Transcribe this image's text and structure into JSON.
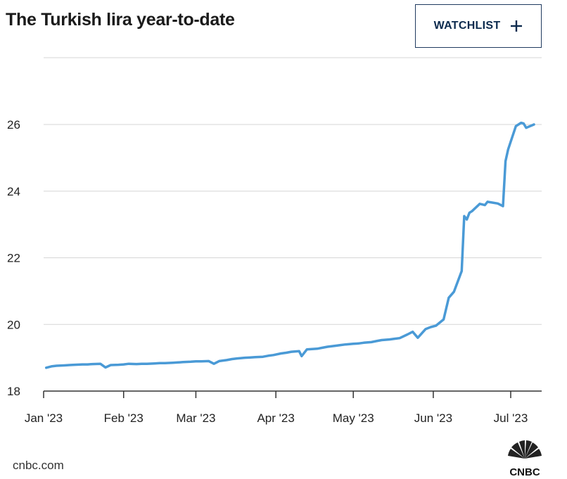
{
  "header": {
    "title": "The Turkish lira year-to-date",
    "watchlist_label": "WATCHLIST"
  },
  "footer": {
    "source": "cnbc.com",
    "logo_text": "CNBC"
  },
  "colors": {
    "line": "#4a9ad6",
    "grid": "#d6d6d6",
    "axis": "#333333",
    "button_border": "#1f3a5f",
    "button_text": "#0d2b4e"
  },
  "chart_data": {
    "type": "line",
    "title": "The Turkish lira year-to-date",
    "xlabel": "",
    "ylabel": "",
    "ylim": [
      18,
      26
    ],
    "grid": true,
    "y_ticks": [
      "18",
      "20",
      "22",
      "24",
      "26"
    ],
    "x_ticks": [
      {
        "label": "Jan '23",
        "date": "2023-01-01"
      },
      {
        "label": "Feb '23",
        "date": "2023-02-01"
      },
      {
        "label": "Mar '23",
        "date": "2023-03-01"
      },
      {
        "label": "Apr '23",
        "date": "2023-04-01"
      },
      {
        "label": "May '23",
        "date": "2023-05-01"
      },
      {
        "label": "Jun '23",
        "date": "2023-06-01"
      },
      {
        "label": "Jul '23",
        "date": "2023-07-01"
      }
    ],
    "series": [
      {
        "points": [
          [
            "2023-01-02",
            18.7
          ],
          [
            "2023-01-04",
            18.74
          ],
          [
            "2023-01-06",
            18.76
          ],
          [
            "2023-01-09",
            18.77
          ],
          [
            "2023-01-11",
            18.78
          ],
          [
            "2023-01-13",
            18.79
          ],
          [
            "2023-01-16",
            18.8
          ],
          [
            "2023-01-18",
            18.8
          ],
          [
            "2023-01-20",
            18.81
          ],
          [
            "2023-01-23",
            18.82
          ],
          [
            "2023-01-25",
            18.71
          ],
          [
            "2023-01-27",
            18.78
          ],
          [
            "2023-01-30",
            18.79
          ],
          [
            "2023-02-01",
            18.8
          ],
          [
            "2023-02-03",
            18.82
          ],
          [
            "2023-02-06",
            18.81
          ],
          [
            "2023-02-08",
            18.82
          ],
          [
            "2023-02-10",
            18.82
          ],
          [
            "2023-02-13",
            18.83
          ],
          [
            "2023-02-15",
            18.84
          ],
          [
            "2023-02-17",
            18.84
          ],
          [
            "2023-02-20",
            18.85
          ],
          [
            "2023-02-22",
            18.86
          ],
          [
            "2023-02-24",
            18.87
          ],
          [
            "2023-02-27",
            18.88
          ],
          [
            "2023-03-01",
            18.89
          ],
          [
            "2023-03-03",
            18.89
          ],
          [
            "2023-03-06",
            18.9
          ],
          [
            "2023-03-08",
            18.82
          ],
          [
            "2023-03-10",
            18.9
          ],
          [
            "2023-03-13",
            18.93
          ],
          [
            "2023-03-15",
            18.96
          ],
          [
            "2023-03-17",
            18.98
          ],
          [
            "2023-03-20",
            19.0
          ],
          [
            "2023-03-22",
            19.01
          ],
          [
            "2023-03-24",
            19.02
          ],
          [
            "2023-03-27",
            19.03
          ],
          [
            "2023-03-29",
            19.06
          ],
          [
            "2023-03-31",
            19.08
          ],
          [
            "2023-04-03",
            19.13
          ],
          [
            "2023-04-05",
            19.15
          ],
          [
            "2023-04-07",
            19.18
          ],
          [
            "2023-04-10",
            19.2
          ],
          [
            "2023-04-11",
            19.05
          ],
          [
            "2023-04-13",
            19.25
          ],
          [
            "2023-04-17",
            19.27
          ],
          [
            "2023-04-19",
            19.3
          ],
          [
            "2023-04-21",
            19.33
          ],
          [
            "2023-04-24",
            19.36
          ],
          [
            "2023-04-26",
            19.38
          ],
          [
            "2023-04-28",
            19.4
          ],
          [
            "2023-05-01",
            19.42
          ],
          [
            "2023-05-03",
            19.43
          ],
          [
            "2023-05-05",
            19.45
          ],
          [
            "2023-05-08",
            19.47
          ],
          [
            "2023-05-10",
            19.5
          ],
          [
            "2023-05-12",
            19.53
          ],
          [
            "2023-05-15",
            19.55
          ],
          [
            "2023-05-17",
            19.57
          ],
          [
            "2023-05-19",
            19.59
          ],
          [
            "2023-05-22",
            19.7
          ],
          [
            "2023-05-24",
            19.78
          ],
          [
            "2023-05-26",
            19.6
          ],
          [
            "2023-05-29",
            19.86
          ],
          [
            "2023-05-31",
            19.92
          ],
          [
            "2023-06-02",
            19.96
          ],
          [
            "2023-06-05",
            20.15
          ],
          [
            "2023-06-07",
            20.8
          ],
          [
            "2023-06-09",
            20.98
          ],
          [
            "2023-06-12",
            21.6
          ],
          [
            "2023-06-13",
            23.25
          ],
          [
            "2023-06-14",
            23.15
          ],
          [
            "2023-06-15",
            23.35
          ],
          [
            "2023-06-16",
            23.4
          ],
          [
            "2023-06-19",
            23.62
          ],
          [
            "2023-06-21",
            23.58
          ],
          [
            "2023-06-22",
            23.68
          ],
          [
            "2023-06-26",
            23.63
          ],
          [
            "2023-06-28",
            23.55
          ],
          [
            "2023-06-29",
            24.9
          ],
          [
            "2023-06-30",
            25.25
          ],
          [
            "2023-07-03",
            25.95
          ],
          [
            "2023-07-05",
            26.05
          ],
          [
            "2023-07-06",
            26.03
          ],
          [
            "2023-07-07",
            25.9
          ],
          [
            "2023-07-10",
            26.0
          ]
        ]
      }
    ]
  }
}
